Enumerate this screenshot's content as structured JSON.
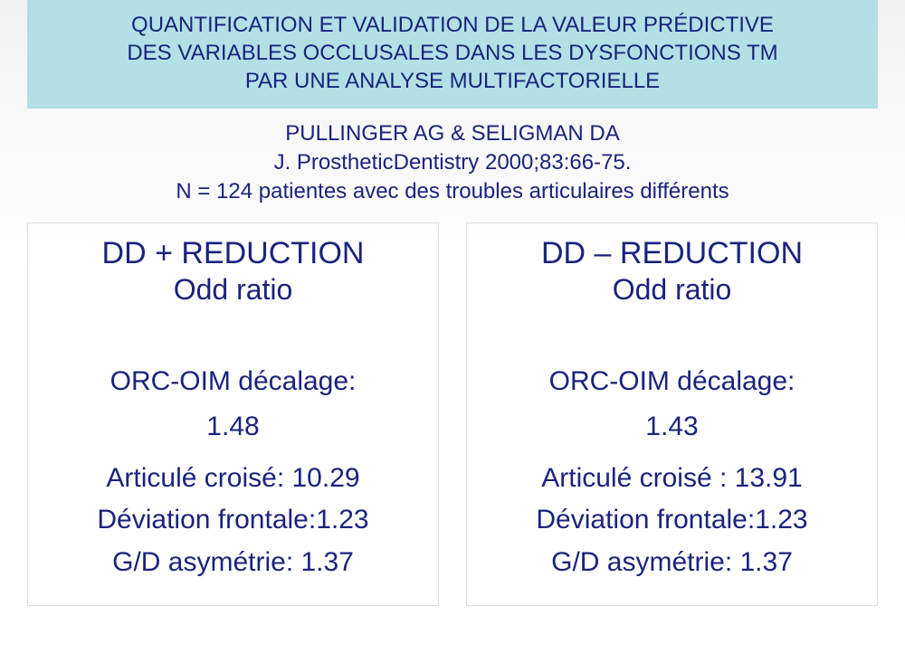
{
  "title": {
    "line1": "QUANTIFICATION ET VALIDATION DE LA VALEUR PRÉDICTIVE",
    "line2": "DES VARIABLES OCCLUSALES DANS LES DYSFONCTIONS TM",
    "line3": "PAR UNE ANALYSE MULTIFACTORIELLE"
  },
  "citation": {
    "authors": "PULLINGER AG & SELIGMAN DA",
    "journal": "J. ProstheticDentistry 2000;83:66-75.",
    "sample": "N = 124 patientes avec des troubles articulaires différents"
  },
  "left": {
    "heading": "DD + REDUCTION",
    "sub": "Odd ratio",
    "orc_label": "ORC-OIM décalage:",
    "orc_value": "1.48",
    "articule": "Articulé croisé: 10.29",
    "deviation": "Déviation frontale:1.23",
    "asym": "G/D asymétrie: 1.37"
  },
  "right": {
    "heading": "DD – REDUCTION",
    "sub": "Odd ratio",
    "orc_label": "ORC-OIM décalage:",
    "orc_value": "1.43",
    "articule": "Articulé croisé : 13.91",
    "deviation": "Déviation frontale:1.23",
    "asym": "G/D asymétrie: 1.37"
  },
  "colors": {
    "banner_bg": "#b2e0e4",
    "text": "#1a237e",
    "panel_border": "#e0e0e0"
  },
  "fonts": {
    "title_size": 24,
    "citation_size": 24,
    "panel_title_size": 34,
    "panel_sub_size": 32,
    "item_size": 30
  }
}
